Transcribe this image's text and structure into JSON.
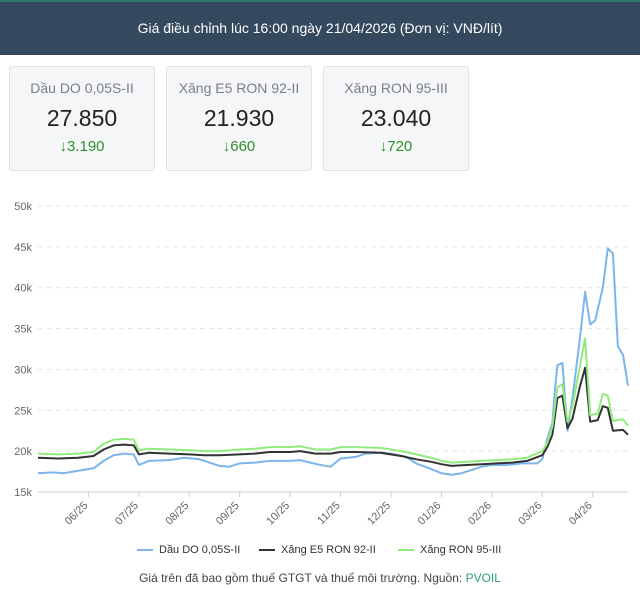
{
  "header": {
    "title": "Giá điều chỉnh lúc 16:00 ngày 21/04/2026 (Đơn vị: VNĐ/lít)"
  },
  "cards": [
    {
      "label": "Dầu DO 0,05S-II",
      "price": "27.850",
      "change": "3.190",
      "arrow": "↓"
    },
    {
      "label": "Xăng E5 RON 92-II",
      "price": "21.930",
      "change": "660",
      "arrow": "↓"
    },
    {
      "label": "Xăng RON 95-III",
      "price": "23.040",
      "change": "720",
      "arrow": "↓"
    }
  ],
  "footer": {
    "text": "Giá trên đã bao gồm thuế GTGT và thuế môi trường. Nguồn: ",
    "source": "PVOIL"
  },
  "chart_data": {
    "type": "line",
    "ylim": [
      15000,
      50000
    ],
    "yticks": [
      15000,
      20000,
      25000,
      30000,
      35000,
      40000,
      45000,
      50000
    ],
    "ytick_labels": [
      "15k",
      "20k",
      "25k",
      "30k",
      "35k",
      "40k",
      "45k",
      "50k"
    ],
    "xlim": [
      0,
      11.7
    ],
    "xticks": [
      1,
      2,
      3,
      4,
      5,
      6,
      7,
      8,
      9,
      10,
      11
    ],
    "xtick_labels": [
      "06/25",
      "07/25",
      "08/25",
      "09/25",
      "10/25",
      "11/25",
      "12/25",
      "01/26",
      "02/26",
      "03/26",
      "04/26"
    ],
    "grid": true,
    "legend_position": "bottom",
    "series": [
      {
        "name": "Dầu DO 0,05S-II",
        "color": "#7cb5ec",
        "points": [
          [
            0,
            17300
          ],
          [
            0.3,
            17400
          ],
          [
            0.5,
            17300
          ],
          [
            0.7,
            17500
          ],
          [
            0.9,
            17700
          ],
          [
            1.1,
            17900
          ],
          [
            1.3,
            18800
          ],
          [
            1.5,
            19500
          ],
          [
            1.7,
            19700
          ],
          [
            1.9,
            19600
          ],
          [
            2.0,
            18300
          ],
          [
            2.2,
            18800
          ],
          [
            2.6,
            18900
          ],
          [
            2.9,
            19200
          ],
          [
            3.2,
            19000
          ],
          [
            3.4,
            18600
          ],
          [
            3.6,
            18200
          ],
          [
            3.8,
            18100
          ],
          [
            4.0,
            18500
          ],
          [
            4.3,
            18600
          ],
          [
            4.6,
            18800
          ],
          [
            5.0,
            18800
          ],
          [
            5.2,
            18900
          ],
          [
            5.4,
            18600
          ],
          [
            5.6,
            18300
          ],
          [
            5.8,
            18100
          ],
          [
            6.0,
            19100
          ],
          [
            6.3,
            19300
          ],
          [
            6.5,
            19700
          ],
          [
            6.8,
            19800
          ],
          [
            7.0,
            19700
          ],
          [
            7.3,
            19300
          ],
          [
            7.5,
            18500
          ],
          [
            7.8,
            17800
          ],
          [
            8.0,
            17300
          ],
          [
            8.2,
            17100
          ],
          [
            8.4,
            17300
          ],
          [
            8.6,
            17700
          ],
          [
            8.8,
            18100
          ],
          [
            9.0,
            18300
          ],
          [
            9.3,
            18300
          ],
          [
            9.6,
            18500
          ],
          [
            9.9,
            18500
          ],
          [
            10.0,
            19000
          ],
          [
            10.1,
            21500
          ],
          [
            10.2,
            23500
          ],
          [
            10.25,
            27500
          ],
          [
            10.3,
            30500
          ],
          [
            10.4,
            30800
          ],
          [
            10.5,
            22500
          ],
          [
            10.6,
            26500
          ],
          [
            10.75,
            34000
          ],
          [
            10.85,
            39500
          ],
          [
            10.95,
            35500
          ],
          [
            11.05,
            36000
          ],
          [
            11.2,
            40000
          ],
          [
            11.3,
            44800
          ],
          [
            11.4,
            44200
          ],
          [
            11.5,
            32800
          ],
          [
            11.6,
            31800
          ],
          [
            11.7,
            28000
          ]
        ]
      },
      {
        "name": "Xăng E5 RON 92-II",
        "color": "#333333",
        "points": [
          [
            0,
            19200
          ],
          [
            0.4,
            19100
          ],
          [
            0.8,
            19200
          ],
          [
            1.1,
            19400
          ],
          [
            1.3,
            20200
          ],
          [
            1.5,
            20700
          ],
          [
            1.7,
            20800
          ],
          [
            1.9,
            20700
          ],
          [
            2.0,
            19600
          ],
          [
            2.2,
            19800
          ],
          [
            2.6,
            19700
          ],
          [
            3.0,
            19600
          ],
          [
            3.3,
            19500
          ],
          [
            3.6,
            19500
          ],
          [
            4.0,
            19600
          ],
          [
            4.3,
            19700
          ],
          [
            4.6,
            19900
          ],
          [
            5.0,
            19900
          ],
          [
            5.2,
            20000
          ],
          [
            5.5,
            19700
          ],
          [
            5.8,
            19700
          ],
          [
            6.0,
            19900
          ],
          [
            6.3,
            19900
          ],
          [
            6.8,
            19800
          ],
          [
            7.2,
            19400
          ],
          [
            7.5,
            19000
          ],
          [
            7.8,
            18700
          ],
          [
            8.0,
            18400
          ],
          [
            8.2,
            18200
          ],
          [
            8.5,
            18300
          ],
          [
            8.8,
            18400
          ],
          [
            9.1,
            18500
          ],
          [
            9.4,
            18600
          ],
          [
            9.7,
            18800
          ],
          [
            10.0,
            19500
          ],
          [
            10.1,
            20500
          ],
          [
            10.2,
            22000
          ],
          [
            10.3,
            26500
          ],
          [
            10.4,
            26800
          ],
          [
            10.5,
            22800
          ],
          [
            10.6,
            24000
          ],
          [
            10.75,
            28000
          ],
          [
            10.85,
            30200
          ],
          [
            10.95,
            23600
          ],
          [
            11.1,
            23800
          ],
          [
            11.2,
            25500
          ],
          [
            11.3,
            25300
          ],
          [
            11.4,
            22500
          ],
          [
            11.6,
            22600
          ],
          [
            11.7,
            22000
          ]
        ]
      },
      {
        "name": "Xăng RON 95-III",
        "color": "#90ed7d",
        "points": [
          [
            0,
            19700
          ],
          [
            0.4,
            19600
          ],
          [
            0.8,
            19700
          ],
          [
            1.1,
            19900
          ],
          [
            1.3,
            20900
          ],
          [
            1.5,
            21400
          ],
          [
            1.7,
            21500
          ],
          [
            1.9,
            21400
          ],
          [
            2.0,
            20100
          ],
          [
            2.2,
            20300
          ],
          [
            2.6,
            20200
          ],
          [
            3.0,
            20100
          ],
          [
            3.3,
            20000
          ],
          [
            3.6,
            20000
          ],
          [
            4.0,
            20200
          ],
          [
            4.3,
            20300
          ],
          [
            4.6,
            20500
          ],
          [
            5.0,
            20500
          ],
          [
            5.2,
            20600
          ],
          [
            5.5,
            20200
          ],
          [
            5.8,
            20200
          ],
          [
            6.0,
            20500
          ],
          [
            6.3,
            20500
          ],
          [
            6.8,
            20400
          ],
          [
            7.2,
            20000
          ],
          [
            7.5,
            19600
          ],
          [
            7.8,
            19200
          ],
          [
            8.0,
            18800
          ],
          [
            8.2,
            18600
          ],
          [
            8.5,
            18700
          ],
          [
            8.8,
            18800
          ],
          [
            9.1,
            18900
          ],
          [
            9.4,
            19000
          ],
          [
            9.7,
            19200
          ],
          [
            10.0,
            20000
          ],
          [
            10.1,
            21000
          ],
          [
            10.2,
            23000
          ],
          [
            10.3,
            27800
          ],
          [
            10.4,
            28200
          ],
          [
            10.5,
            23600
          ],
          [
            10.6,
            25500
          ],
          [
            10.75,
            30500
          ],
          [
            10.85,
            33800
          ],
          [
            10.95,
            24400
          ],
          [
            11.1,
            24600
          ],
          [
            11.2,
            27000
          ],
          [
            11.3,
            26800
          ],
          [
            11.4,
            23700
          ],
          [
            11.6,
            23900
          ],
          [
            11.7,
            23100
          ]
        ]
      }
    ]
  }
}
